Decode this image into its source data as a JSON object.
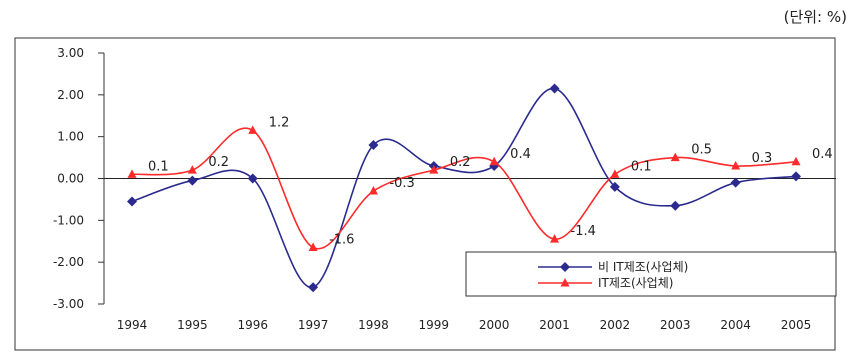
{
  "unit_label": "(단위: %)",
  "chart_data": {
    "type": "line",
    "categories": [
      "1994",
      "1995",
      "1996",
      "1997",
      "1998",
      "1999",
      "2000",
      "2001",
      "2002",
      "2003",
      "2004",
      "2005"
    ],
    "ylim": [
      -3.0,
      3.0
    ],
    "yticks": [
      "3.00",
      "2.00",
      "1.00",
      "0.00",
      "-1.00",
      "-2.00",
      "-3.00"
    ],
    "ytick_values": [
      3,
      2,
      1,
      0,
      -1,
      -2,
      -3
    ],
    "grid": false,
    "legend_position": "bottom-right",
    "series": [
      {
        "name": "비 IT제조(사업체)",
        "color": "#2b2b8f",
        "marker": "diamond",
        "values": [
          -0.55,
          -0.05,
          0.0,
          -2.6,
          0.8,
          0.3,
          0.3,
          2.15,
          -0.2,
          -0.65,
          -0.1,
          0.05
        ],
        "labels": []
      },
      {
        "name": "IT제조(사업체)",
        "color": "#ff2a2a",
        "marker": "triangle",
        "values": [
          0.1,
          0.2,
          1.15,
          -1.65,
          -0.3,
          0.2,
          0.4,
          -1.45,
          0.1,
          0.5,
          0.3,
          0.4
        ],
        "labels": [
          "0.1",
          "0.2",
          "1.2",
          "-1.6",
          "-0.3",
          "0.2",
          "0.4",
          "-1.4",
          "0.1",
          "0.5",
          "0.3",
          "0.4"
        ]
      }
    ]
  }
}
